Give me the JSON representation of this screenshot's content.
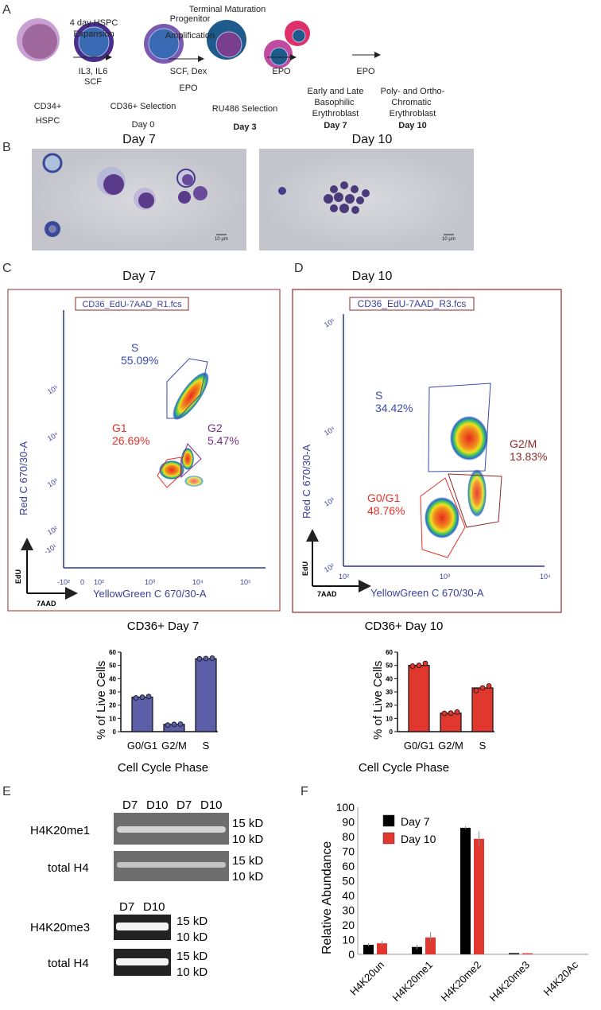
{
  "panels": {
    "a": "A",
    "b": "B",
    "c": "C",
    "d": "D",
    "e": "E",
    "f": "F"
  },
  "panel_a": {
    "title_terminal": "Terminal Maturation",
    "step1_top": [
      "4 day HSPC",
      "Expansion"
    ],
    "step1_bottom": [
      "IL3, IL6",
      "SCF"
    ],
    "step2_top": [
      "Progenitor",
      "Amplification"
    ],
    "step2_bottom": [
      "SCF, Dex",
      "EPO"
    ],
    "step3": "EPO",
    "step4": "EPO",
    "cell1": [
      "CD34+",
      "HSPC"
    ],
    "cell2": [
      "CD36+ Selection",
      "Day 0"
    ],
    "cell3": [
      "RU486 Selection",
      "Day 3"
    ],
    "cell4": [
      "Early and Late",
      "Basophilic",
      "Erythroblast",
      "Day 7"
    ],
    "cell5": [
      "Poly- and Ortho-",
      "Chromatic",
      "Erythroblast",
      "Day 10"
    ],
    "colors": {
      "hspc": "#a774b0",
      "cd36_ring": "#4a2d8c",
      "nucleus": "#3a6ab3",
      "ortho": "#e0306a",
      "poly": "#c04aa0"
    }
  },
  "panel_b": {
    "left_title": "Day 7",
    "right_title": "Day 10",
    "scale_bar": "10 µm"
  },
  "panel_c": {
    "title": "Day 7",
    "file": "CD36_EdU-7AAD_R1.fcs",
    "gates": [
      {
        "name": "S",
        "pct": "55.09%",
        "color": "#3a4aa8"
      },
      {
        "name": "G1",
        "pct": "26.69%",
        "color": "#e8302a"
      },
      {
        "name": "G2",
        "pct": "5.47%",
        "color": "#7a2e8a"
      }
    ],
    "ylabel": "Red C 670/30-A",
    "xlabel": "YellowGreen C 670/30-A",
    "yticks": [
      "10⁵",
      "10⁴",
      "10³",
      "10²",
      "-10¹"
    ],
    "xticks": [
      "-10²",
      "0",
      "10²",
      "10³",
      "10⁴",
      "10⁵"
    ],
    "arrow_y": "EdU",
    "arrow_x": "7AAD"
  },
  "panel_d": {
    "title": "Day 10",
    "file": "CD36_EdU-7AAD_R3.fcs",
    "gates": [
      {
        "name": "S",
        "pct": "34.42%",
        "color": "#3a4aa8"
      },
      {
        "name": "G2/M",
        "pct": "13.83%",
        "color": "#8a2a2a"
      },
      {
        "name": "G0/G1",
        "pct": "48.76%",
        "color": "#e8302a"
      }
    ],
    "ylabel": "Red C 670/30-A",
    "xlabel": "YellowGreen C 670/30-A",
    "yticks": [
      "10⁵",
      "10⁴",
      "10³",
      "10²"
    ],
    "xticks": [
      "10²",
      "10³",
      "10⁴"
    ],
    "arrow_y": "EdU",
    "arrow_x": "7AAD"
  },
  "panel_e": {
    "blot1": {
      "label": "H4K20me1",
      "lanes": [
        "D7",
        "D10",
        "D7",
        "D10"
      ]
    },
    "blot2": {
      "label": "total H4"
    },
    "blot3": {
      "label": "H4K20me3",
      "lanes": [
        "D7",
        "D10"
      ]
    },
    "blot4": {
      "label": "total H4"
    },
    "mw": [
      "15 kD",
      "10 kD"
    ]
  },
  "chart_data": [
    {
      "type": "bar",
      "title": "CD36+ Day 7",
      "xlabel": "Cell Cycle Phase",
      "ylabel": "% of Live Cells",
      "categories": [
        "G0/G1",
        "G2/M",
        "S"
      ],
      "values": [
        26,
        5.5,
        55
      ],
      "points": [
        [
          25.5,
          26,
          26.5
        ],
        [
          5,
          5.5,
          5.7
        ],
        [
          55,
          55.2,
          55.5
        ]
      ],
      "ylim": [
        0,
        60
      ],
      "yticks": [
        0,
        10,
        20,
        30,
        40,
        50,
        60
      ],
      "color": "#5b5fa8"
    },
    {
      "type": "bar",
      "title": "CD36+ Day 10",
      "xlabel": "Cell Cycle Phase",
      "ylabel": "% of Live Cells",
      "categories": [
        "G0/G1",
        "G2/M",
        "S"
      ],
      "values": [
        50,
        14,
        33
      ],
      "points": [
        [
          49.5,
          50,
          51.5
        ],
        [
          13.8,
          14,
          14.8
        ],
        [
          31,
          33,
          34.5
        ]
      ],
      "ylim": [
        0,
        60
      ],
      "yticks": [
        0,
        10,
        20,
        30,
        40,
        50,
        60
      ],
      "color": "#e0382f"
    },
    {
      "type": "bar",
      "title": "",
      "xlabel": "",
      "ylabel": "Relative Abundance",
      "categories": [
        "H4K20un",
        "H4K20me1",
        "H4K20me2",
        "H4K20me3",
        "H4K20Ac"
      ],
      "series": [
        {
          "name": "Day 7",
          "color": "#000000",
          "values": [
            6.5,
            5,
            86,
            0.8,
            0
          ],
          "errors": [
            1,
            1.5,
            1,
            0.2,
            0
          ]
        },
        {
          "name": "Day 10",
          "color": "#e0382f",
          "values": [
            7.5,
            11.5,
            78.5,
            0.7,
            0
          ],
          "errors": [
            1.5,
            3.5,
            5,
            0.2,
            0
          ]
        }
      ],
      "ylim": [
        0,
        100
      ],
      "yticks": [
        0,
        10,
        20,
        30,
        40,
        50,
        60,
        70,
        80,
        90,
        100
      ],
      "legend": "top-left"
    }
  ]
}
